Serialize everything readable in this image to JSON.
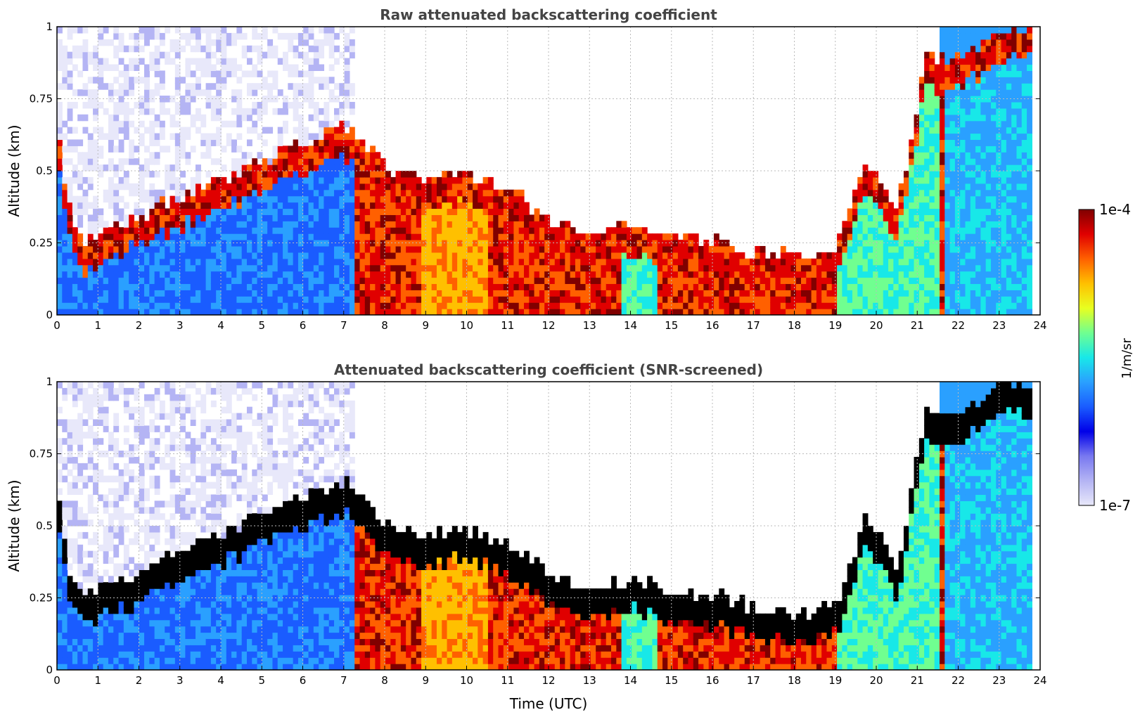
{
  "chart_data": [
    {
      "type": "heatmap",
      "title": "Raw attenuated backscattering coefficient",
      "xlabel": "",
      "ylabel": "Altitude (km)",
      "xlim": [
        0,
        24
      ],
      "ylim": [
        0,
        1
      ],
      "x_ticks": [
        "0",
        "1",
        "2",
        "3",
        "4",
        "5",
        "6",
        "7",
        "8",
        "9",
        "10",
        "11",
        "12",
        "13",
        "14",
        "15",
        "16",
        "17",
        "18",
        "19",
        "20",
        "21",
        "22",
        "23",
        "24"
      ],
      "y_ticks": [
        "0",
        "0.25",
        "0.5",
        "0.75",
        "1"
      ],
      "grid": true,
      "screened": false,
      "layer_top_km": [
        {
          "t": 0.0,
          "z": 0.62
        },
        {
          "t": 0.3,
          "z": 0.32
        },
        {
          "t": 0.7,
          "z": 0.22
        },
        {
          "t": 7.0,
          "z": 0.62
        },
        {
          "t": 8.0,
          "z": 0.48
        },
        {
          "t": 9.0,
          "z": 0.42
        },
        {
          "t": 10.0,
          "z": 0.45
        },
        {
          "t": 11.0,
          "z": 0.4
        },
        {
          "t": 12.0,
          "z": 0.3
        },
        {
          "t": 13.0,
          "z": 0.22
        },
        {
          "t": 14.0,
          "z": 0.28
        },
        {
          "t": 15.0,
          "z": 0.24
        },
        {
          "t": 16.0,
          "z": 0.22
        },
        {
          "t": 17.0,
          "z": 0.18
        },
        {
          "t": 18.0,
          "z": 0.16
        },
        {
          "t": 19.0,
          "z": 0.18
        },
        {
          "t": 19.8,
          "z": 0.5
        },
        {
          "t": 20.5,
          "z": 0.3
        },
        {
          "t": 21.2,
          "z": 0.85
        },
        {
          "t": 22.0,
          "z": 0.85
        },
        {
          "t": 23.0,
          "z": 0.95
        },
        {
          "t": 23.8,
          "z": 0.95
        }
      ]
    },
    {
      "type": "heatmap",
      "title": "Attenuated backscattering coefficient (SNR-screened)",
      "xlabel": "Time (UTC)",
      "ylabel": "Altitude (km)",
      "xlim": [
        0,
        24
      ],
      "ylim": [
        0,
        1
      ],
      "x_ticks": [
        "0",
        "1",
        "2",
        "3",
        "4",
        "5",
        "6",
        "7",
        "8",
        "9",
        "10",
        "11",
        "12",
        "13",
        "14",
        "15",
        "16",
        "17",
        "18",
        "19",
        "20",
        "21",
        "22",
        "23",
        "24"
      ],
      "y_ticks": [
        "0",
        "0.25",
        "0.5",
        "0.75",
        "1"
      ],
      "grid": true,
      "screened": true,
      "layer_top_km": [
        {
          "t": 0.0,
          "z": 0.62
        },
        {
          "t": 0.3,
          "z": 0.32
        },
        {
          "t": 0.7,
          "z": 0.22
        },
        {
          "t": 7.0,
          "z": 0.62
        },
        {
          "t": 8.0,
          "z": 0.48
        },
        {
          "t": 9.0,
          "z": 0.42
        },
        {
          "t": 10.0,
          "z": 0.45
        },
        {
          "t": 11.0,
          "z": 0.4
        },
        {
          "t": 12.0,
          "z": 0.3
        },
        {
          "t": 13.0,
          "z": 0.22
        },
        {
          "t": 14.0,
          "z": 0.28
        },
        {
          "t": 15.0,
          "z": 0.24
        },
        {
          "t": 16.0,
          "z": 0.22
        },
        {
          "t": 17.0,
          "z": 0.18
        },
        {
          "t": 18.0,
          "z": 0.16
        },
        {
          "t": 19.0,
          "z": 0.18
        },
        {
          "t": 19.8,
          "z": 0.5
        },
        {
          "t": 20.5,
          "z": 0.3
        },
        {
          "t": 21.2,
          "z": 0.85
        },
        {
          "t": 22.0,
          "z": 0.85
        },
        {
          "t": 23.0,
          "z": 0.95
        },
        {
          "t": 23.8,
          "z": 0.95
        }
      ]
    }
  ],
  "colorbar": {
    "max_label": "1e-4",
    "min_label": "1e-7",
    "unit": "1/m/sr",
    "scale": "log",
    "range": [
      1e-07,
      0.0001
    ],
    "colormap": [
      "#e8e8fa",
      "#b4b4f4",
      "#7878f0",
      "#0000e8",
      "#1a5cff",
      "#2aa0ff",
      "#18e8e8",
      "#70ff90",
      "#e8ff20",
      "#ffc000",
      "#ff6000",
      "#e00000",
      "#800000"
    ]
  },
  "colors": {
    "background": "#ffffff",
    "grid": "#bbbbbb",
    "screened_overflow": "#000000",
    "title_text": "#444444"
  }
}
